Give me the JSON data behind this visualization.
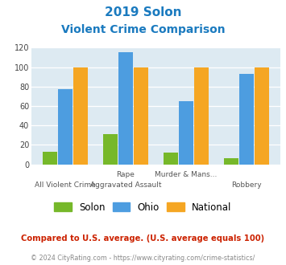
{
  "title_line1": "2019 Solon",
  "title_line2": "Violent Crime Comparison",
  "title_color": "#1a7abf",
  "cat_top": [
    "",
    "Rape",
    "Murder & Mans...",
    ""
  ],
  "cat_bot": [
    "All Violent Crime",
    "Aggravated Assault",
    "",
    "Robbery"
  ],
  "solon_values": [
    13,
    31,
    12,
    6
  ],
  "ohio_values": [
    77,
    115,
    65,
    93
  ],
  "national_values": [
    100,
    100,
    100,
    100
  ],
  "solon_color": "#76b82a",
  "ohio_color": "#4d9de0",
  "national_color": "#f5a623",
  "bg_color": "#ddeaf2",
  "ylim": [
    0,
    120
  ],
  "yticks": [
    0,
    20,
    40,
    60,
    80,
    100,
    120
  ],
  "footnote1": "Compared to U.S. average. (U.S. average equals 100)",
  "footnote2": "© 2024 CityRating.com - https://www.cityrating.com/crime-statistics/",
  "footnote1_color": "#cc2200",
  "footnote2_color": "#888888",
  "legend_labels": [
    "Solon",
    "Ohio",
    "National"
  ]
}
